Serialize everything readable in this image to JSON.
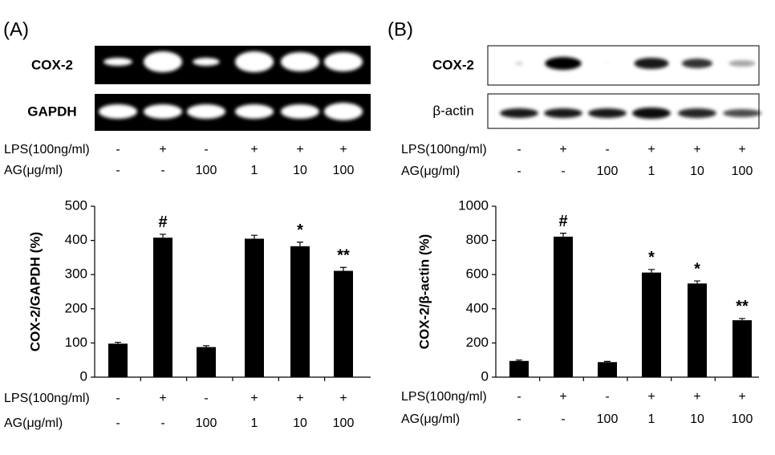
{
  "panels": [
    {
      "label": "(A)",
      "blot_labels": [
        "COX-2",
        "GAPDH"
      ]
    },
    {
      "label": "(B)",
      "blot_labels": [
        "COX-2",
        "β-actin"
      ]
    }
  ],
  "chart_data": [
    {
      "type": "bar",
      "ylabel": "COX-2/GAPDH (%)",
      "conditions": [
        {
          "label": "LPS(100ng/ml)",
          "levels": [
            "-",
            "+",
            "-",
            "+",
            "+",
            "+"
          ]
        },
        {
          "label": "AG(μg/ml)",
          "levels": [
            "-",
            "-",
            "100",
            "1",
            "10",
            "100"
          ]
        }
      ],
      "values": [
        98,
        408,
        88,
        405,
        383,
        311
      ],
      "errors": [
        4,
        10,
        4,
        10,
        12,
        10
      ],
      "value_annotations": [
        null,
        "#",
        null,
        null,
        "*",
        "**"
      ],
      "color": "#000000",
      "ylim": [
        0,
        500
      ],
      "yticks": [
        0,
        100,
        200,
        300,
        400,
        500
      ]
    },
    {
      "type": "bar",
      "ylabel": "COX-2/β-actin (%)",
      "conditions": [
        {
          "label": "LPS(100ng/ml)",
          "levels": [
            "-",
            "+",
            "-",
            "+",
            "+",
            "+"
          ]
        },
        {
          "label": "AG(μg/ml)",
          "levels": [
            "-",
            "-",
            "100",
            "1",
            "10",
            "100"
          ]
        }
      ],
      "values": [
        95,
        822,
        88,
        612,
        548,
        333
      ],
      "errors": [
        5,
        20,
        4,
        18,
        15,
        10
      ],
      "value_annotations": [
        null,
        "#",
        null,
        "*",
        "*",
        "**"
      ],
      "color": "#000000",
      "ylim": [
        0,
        1000
      ],
      "yticks": [
        0,
        200,
        400,
        600,
        800,
        1000
      ]
    }
  ]
}
